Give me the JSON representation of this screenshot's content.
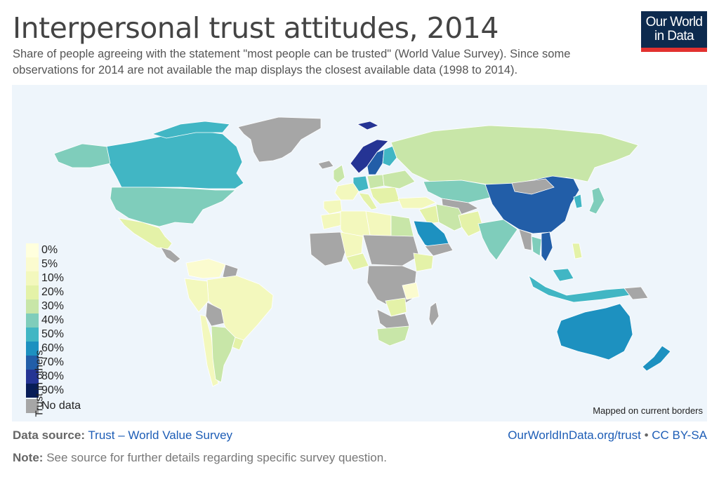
{
  "header": {
    "title": "Interpersonal trust attitudes, 2014",
    "subtitle": "Share of people agreeing with the statement \"most people can be trusted\" (World Value Survey). Since some observations for 2014 are not available the map displays the closest available data (1998 to 2014)."
  },
  "logo": {
    "line1": "Our World",
    "line2": "in Data",
    "bg_color": "#0d2a4e",
    "accent_color": "#e2312f"
  },
  "map": {
    "ocean_color": "#eef5fb",
    "no_data_color": "#a6a6a6",
    "mapped_note": "Mapped on current borders"
  },
  "legend": {
    "title": "Trust in others",
    "items": [
      {
        "label": "0%",
        "color": "#ffffdd"
      },
      {
        "label": "5%",
        "color": "#fbfbcf"
      },
      {
        "label": "10%",
        "color": "#f3f8bd"
      },
      {
        "label": "20%",
        "color": "#e4f2a8"
      },
      {
        "label": "30%",
        "color": "#c8e6a8"
      },
      {
        "label": "40%",
        "color": "#7fcdbb"
      },
      {
        "label": "50%",
        "color": "#41b6c4"
      },
      {
        "label": "60%",
        "color": "#1d91c0"
      },
      {
        "label": "70%",
        "color": "#225ea8"
      },
      {
        "label": "80%",
        "color": "#253494"
      },
      {
        "label": "90%",
        "color": "#081d58"
      },
      {
        "label": "No data",
        "color": "#a6a6a6"
      }
    ]
  },
  "footer": {
    "source_label": "Data source:",
    "source_text": "Trust – World Value Survey",
    "url_text": "OurWorldInData.org/trust",
    "separator": "•",
    "license": "CC BY-SA",
    "note_label": "Note:",
    "note_text": "See source for further details regarding specific survey question."
  }
}
